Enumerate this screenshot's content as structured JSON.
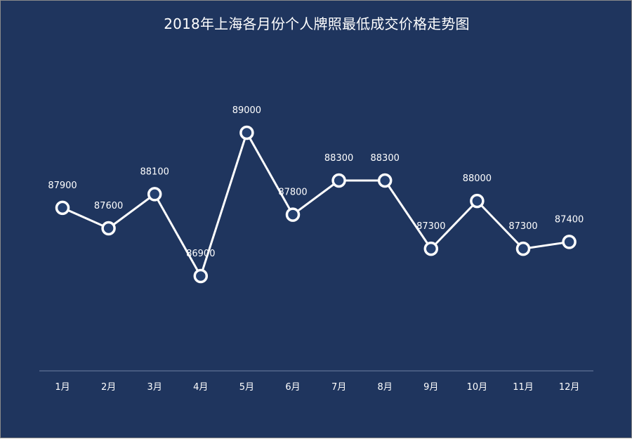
{
  "chart_data": {
    "type": "line",
    "title": "2018年上海各月份个人牌照最低成交价格走势图",
    "categories": [
      "1月",
      "2月",
      "3月",
      "4月",
      "5月",
      "6月",
      "7月",
      "8月",
      "9月",
      "10月",
      "11月",
      "12月"
    ],
    "series": [
      {
        "values": [
          87900,
          87600,
          88100,
          86900,
          89000,
          87800,
          88300,
          88300,
          87300,
          88000,
          87300,
          87400
        ]
      }
    ],
    "xlabel": "",
    "ylabel": "",
    "ylim": [
      86600,
      89200
    ],
    "grid": false,
    "legend": "none",
    "data_labels": true
  },
  "colors": {
    "background": "#1f355e",
    "line": "#ffffff",
    "marker_fill": "#243f6e",
    "axis": "#6c7fa3"
  }
}
